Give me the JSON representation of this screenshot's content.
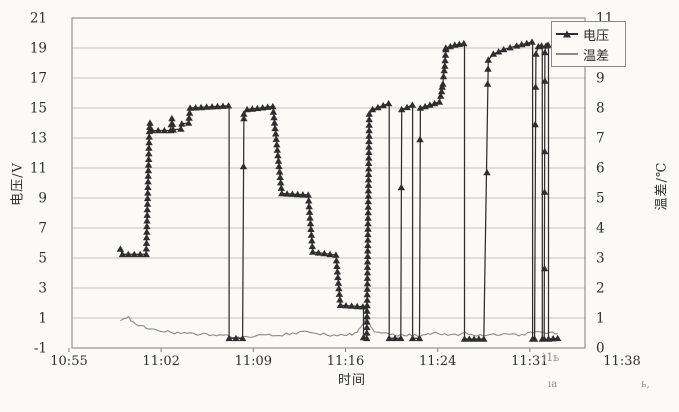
{
  "figure": {
    "background": "#fbfaf7",
    "text_color": "#2f2f2f",
    "grid_color": "#c2c2c2",
    "border_color": "#7d7d7d"
  },
  "chart_data": {
    "type": "line",
    "title": "",
    "x_axis": {
      "title": "时间",
      "tick_labels": [
        "10:55",
        "11:02",
        "11:09",
        "11:16",
        "11:24",
        "11:31",
        "11:38"
      ],
      "unit": "time (hh:mm)",
      "range_minutes_after_first_tick": [
        0,
        43
      ],
      "grid": false
    },
    "y_left": {
      "title": "电压/V",
      "min": -1,
      "max": 21,
      "step": 2,
      "tick_labels": [
        "21",
        "19",
        "17",
        "15",
        "13",
        "11",
        "9",
        "7",
        "5",
        "3",
        "1",
        "-1"
      ],
      "grid": true
    },
    "y_right": {
      "title": "温差/℃",
      "min": 0,
      "max": 11,
      "step": 1,
      "tick_labels": [
        "11",
        "10",
        "9",
        "8",
        "7",
        "6",
        "5",
        "4",
        "3",
        "2",
        "1",
        "0"
      ]
    },
    "legend": {
      "position": "top-right",
      "items": [
        {
          "label": "电压",
          "marker": "triangle-line",
          "color": "#2e2e2e"
        },
        {
          "label": "温差",
          "marker": "line",
          "color": "#8a8a8a"
        }
      ]
    },
    "series": [
      {
        "name": "电压",
        "axis": "left",
        "color": "#2e2e2e",
        "marker": "filled-triangle-up",
        "x_unit": "minutes after 10:55",
        "segments": [
          {
            "m": "dense",
            "pts": [
              [
                4.0,
                5.6
              ],
              [
                4.15,
                5.25
              ],
              [
                6.0,
                5.25
              ]
            ]
          },
          {
            "m": "dense",
            "pts": [
              [
                6.0,
                5.25
              ],
              [
                6.25,
                13.45
              ]
            ]
          },
          {
            "m": "dense",
            "pts": [
              [
                6.25,
                13.45
              ],
              [
                6.3,
                14.0
              ],
              [
                6.45,
                13.5
              ],
              [
                7.9,
                13.5
              ],
              [
                8.0,
                14.3
              ],
              [
                8.1,
                13.55
              ],
              [
                8.7,
                13.6
              ],
              [
                8.78,
                13.95
              ],
              [
                9.3,
                14.0
              ],
              [
                9.42,
                15.0
              ],
              [
                12.4,
                15.15
              ]
            ]
          },
          {
            "m": "none",
            "pts": [
              [
                12.45,
                15.15
              ],
              [
                12.45,
                -0.35
              ]
            ]
          },
          {
            "m": "dense",
            "pts": [
              [
                12.45,
                -0.35
              ],
              [
                13.5,
                -0.35
              ]
            ]
          },
          {
            "m": "none",
            "pts": [
              [
                13.5,
                -0.35
              ],
              [
                13.6,
                14.6
              ]
            ]
          },
          {
            "m": "dense",
            "pts": [
              [
                13.6,
                14.6
              ],
              [
                13.85,
                14.9
              ],
              [
                15.85,
                15.1
              ]
            ]
          },
          {
            "m": "dense",
            "pts": [
              [
                15.85,
                15.1
              ],
              [
                16.55,
                9.3
              ]
            ]
          },
          {
            "m": "dense",
            "pts": [
              [
                16.55,
                9.3
              ],
              [
                18.6,
                9.2
              ]
            ]
          },
          {
            "m": "dense",
            "pts": [
              [
                18.6,
                9.2
              ],
              [
                18.95,
                5.4
              ]
            ]
          },
          {
            "m": "dense",
            "pts": [
              [
                18.95,
                5.4
              ],
              [
                20.75,
                5.2
              ]
            ]
          },
          {
            "m": "dense",
            "pts": [
              [
                20.75,
                5.2
              ],
              [
                21.1,
                1.85
              ]
            ]
          },
          {
            "m": "dense",
            "pts": [
              [
                21.1,
                1.85
              ],
              [
                22.85,
                1.75
              ]
            ]
          },
          {
            "m": "none",
            "pts": [
              [
                22.9,
                1.75
              ],
              [
                22.9,
                -0.3
              ]
            ]
          },
          {
            "m": "dense",
            "pts": [
              [
                22.9,
                -0.3
              ],
              [
                23.15,
                -0.35
              ]
            ]
          },
          {
            "m": "dense",
            "pts": [
              [
                23.15,
                -0.35
              ],
              [
                23.35,
                14.6
              ]
            ]
          },
          {
            "m": "dense",
            "pts": [
              [
                23.35,
                14.6
              ],
              [
                23.6,
                14.9
              ],
              [
                24.85,
                15.3
              ]
            ]
          },
          {
            "m": "none",
            "pts": [
              [
                24.9,
                15.3
              ],
              [
                24.9,
                -0.35
              ]
            ]
          },
          {
            "m": "dense",
            "pts": [
              [
                24.9,
                -0.35
              ],
              [
                25.8,
                -0.35
              ]
            ]
          },
          {
            "m": "none",
            "pts": [
              [
                25.8,
                -0.35
              ],
              [
                25.87,
                14.9
              ]
            ]
          },
          {
            "m": "dense",
            "pts": [
              [
                25.87,
                14.9
              ],
              [
                26.7,
                15.2
              ]
            ]
          },
          {
            "m": "none",
            "pts": [
              [
                26.72,
                15.2
              ],
              [
                26.72,
                -0.35
              ]
            ]
          },
          {
            "m": "dense",
            "pts": [
              [
                26.72,
                -0.35
              ],
              [
                27.25,
                -0.35
              ]
            ]
          },
          {
            "m": "none",
            "pts": [
              [
                27.25,
                -0.35
              ],
              [
                27.32,
                15.0
              ]
            ]
          },
          {
            "m": "dense",
            "pts": [
              [
                27.32,
                15.0
              ],
              [
                28.8,
                15.4
              ]
            ]
          },
          {
            "m": "dense",
            "pts": [
              [
                28.8,
                15.4
              ],
              [
                28.9,
                15.8
              ],
              [
                28.97,
                16.1
              ],
              [
                29.02,
                16.4
              ],
              [
                29.07,
                16.6
              ],
              [
                29.12,
                17.1
              ],
              [
                29.17,
                17.5
              ],
              [
                29.22,
                17.8
              ],
              [
                29.3,
                18.9
              ]
            ]
          },
          {
            "m": "dense",
            "pts": [
              [
                29.3,
                19.0
              ],
              [
                30.0,
                19.2
              ],
              [
                30.7,
                19.3
              ]
            ]
          },
          {
            "m": "none",
            "pts": [
              [
                30.75,
                19.3
              ],
              [
                30.75,
                -0.4
              ]
            ]
          },
          {
            "m": "dense",
            "pts": [
              [
                30.75,
                -0.4
              ],
              [
                32.25,
                -0.4
              ]
            ]
          },
          {
            "m": "none",
            "pts": [
              [
                32.25,
                -0.4
              ],
              [
                32.6,
                18.2
              ]
            ]
          },
          {
            "m": "dense",
            "pts": [
              [
                32.6,
                18.2
              ],
              [
                33.0,
                18.6
              ],
              [
                33.8,
                18.9
              ],
              [
                34.8,
                19.15
              ],
              [
                36.0,
                19.4
              ]
            ]
          },
          {
            "m": "none",
            "pts": [
              [
                36.05,
                19.4
              ],
              [
                36.05,
                -0.4
              ]
            ]
          },
          {
            "m": "dense",
            "pts": [
              [
                36.05,
                -0.4
              ],
              [
                36.2,
                -0.4
              ]
            ]
          },
          {
            "m": "none",
            "pts": [
              [
                36.2,
                -0.4
              ],
              [
                36.3,
                18.6
              ]
            ]
          },
          {
            "m": "dense",
            "pts": [
              [
                36.3,
                18.6
              ],
              [
                36.5,
                19.1
              ],
              [
                36.75,
                19.15
              ]
            ]
          },
          {
            "m": "none",
            "pts": [
              [
                36.8,
                19.15
              ],
              [
                36.8,
                -0.4
              ]
            ]
          },
          {
            "m": "dense",
            "pts": [
              [
                36.8,
                -0.4
              ],
              [
                36.95,
                -0.4
              ]
            ]
          },
          {
            "m": "none",
            "pts": [
              [
                36.95,
                -0.4
              ],
              [
                37.0,
                18.7
              ]
            ]
          },
          {
            "m": "dense",
            "pts": [
              [
                37.0,
                18.7
              ],
              [
                37.1,
                19.15
              ],
              [
                37.25,
                19.2
              ]
            ]
          },
          {
            "m": "none",
            "pts": [
              [
                37.28,
                19.2
              ],
              [
                37.28,
                -0.4
              ]
            ]
          },
          {
            "m": "dense",
            "pts": [
              [
                37.28,
                -0.4
              ],
              [
                38.0,
                -0.35
              ]
            ]
          }
        ],
        "extra_markers": [
          [
            13.57,
            11.1
          ],
          [
            13.6,
            14.3
          ],
          [
            22.9,
            -0.3
          ],
          [
            25.84,
            9.7
          ],
          [
            27.29,
            12.9
          ],
          [
            32.5,
            10.7
          ],
          [
            32.55,
            16.6
          ],
          [
            32.58,
            17.6
          ],
          [
            36.25,
            13.9
          ],
          [
            36.28,
            16.4
          ],
          [
            36.97,
            4.3
          ],
          [
            36.98,
            9.4
          ],
          [
            36.99,
            12.1
          ],
          [
            37.0,
            16.8
          ]
        ]
      },
      {
        "name": "温差",
        "axis": "right",
        "color": "#8a8a8a",
        "marker": "none",
        "x_unit": "minutes after 10:55",
        "noise_amplitude_c": 0.045,
        "pts": [
          [
            4.0,
            0.92
          ],
          [
            4.3,
            0.98
          ],
          [
            4.6,
            1.06
          ],
          [
            4.8,
            0.9
          ],
          [
            5.2,
            0.8
          ],
          [
            5.8,
            0.72
          ],
          [
            6.4,
            0.62
          ],
          [
            7.2,
            0.56
          ],
          [
            8.2,
            0.5
          ],
          [
            9.2,
            0.47
          ],
          [
            10.2,
            0.45
          ],
          [
            11.2,
            0.44
          ],
          [
            12.0,
            0.42
          ],
          [
            12.6,
            0.36
          ],
          [
            13.4,
            0.34
          ],
          [
            14.0,
            0.38
          ],
          [
            14.8,
            0.42
          ],
          [
            15.8,
            0.42
          ],
          [
            16.6,
            0.44
          ],
          [
            17.4,
            0.5
          ],
          [
            18.2,
            0.52
          ],
          [
            19.0,
            0.5
          ],
          [
            19.8,
            0.46
          ],
          [
            20.6,
            0.42
          ],
          [
            21.4,
            0.43
          ],
          [
            22.0,
            0.47
          ],
          [
            22.4,
            0.56
          ],
          [
            22.7,
            0.7
          ],
          [
            22.95,
            0.85
          ],
          [
            23.1,
            1.0
          ],
          [
            23.25,
            0.9
          ],
          [
            23.45,
            0.75
          ],
          [
            23.7,
            0.6
          ],
          [
            24.1,
            0.52
          ],
          [
            24.7,
            0.47
          ],
          [
            25.4,
            0.44
          ],
          [
            26.0,
            0.42
          ],
          [
            26.7,
            0.44
          ],
          [
            27.3,
            0.4
          ],
          [
            27.9,
            0.45
          ],
          [
            28.5,
            0.5
          ],
          [
            29.2,
            0.46
          ],
          [
            30.0,
            0.43
          ],
          [
            30.8,
            0.49
          ],
          [
            31.5,
            0.45
          ],
          [
            32.2,
            0.41
          ],
          [
            33.0,
            0.43
          ],
          [
            33.8,
            0.46
          ],
          [
            34.5,
            0.43
          ],
          [
            35.2,
            0.46
          ],
          [
            35.9,
            0.5
          ],
          [
            36.5,
            0.54
          ],
          [
            37.1,
            0.5
          ],
          [
            37.6,
            0.52
          ],
          [
            38.0,
            0.48
          ]
        ]
      }
    ]
  },
  "artifacts": [
    {
      "text": ")1ь"
    },
    {
      "text": "ıa"
    },
    {
      "text": "ь,"
    }
  ]
}
